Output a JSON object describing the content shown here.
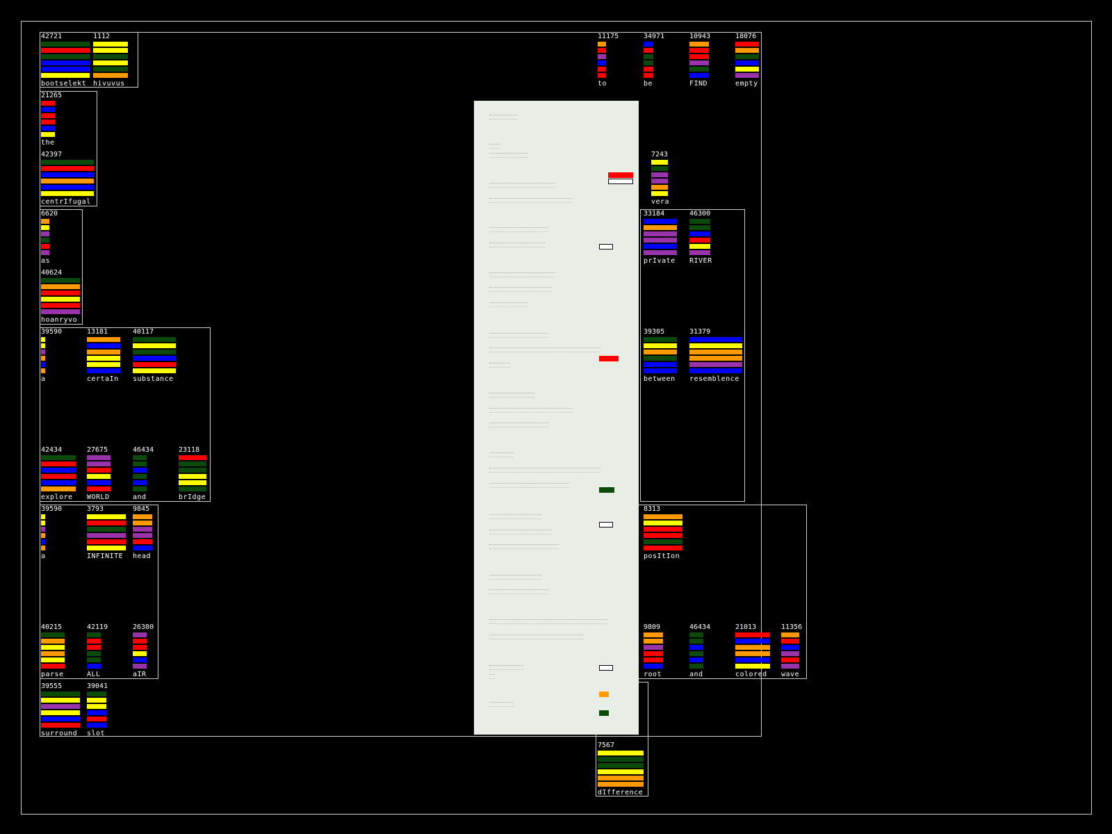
{
  "palette": {
    "green": "#0b4a0b",
    "red": "#ff0000",
    "blue": "#0000ff",
    "yellow": "#ffff00",
    "orange": "#ff9900",
    "purple": "#9933aa",
    "frame": "#cfcfcf",
    "panel": "#e8ede5"
  },
  "words": [
    {
      "count": "42721",
      "label": "bootselekt",
      "bars": [
        "green",
        "red",
        "green",
        "blue",
        "blue",
        "yellow"
      ]
    },
    {
      "count": "1112",
      "label": "hivuvus",
      "bars": [
        "yellow",
        "yellow",
        "green",
        "yellow",
        "green",
        "orange"
      ]
    },
    {
      "count": "11175",
      "label": "to",
      "bars": [
        "orange",
        "red",
        "purple",
        "blue",
        "red",
        "red"
      ]
    },
    {
      "count": "34971",
      "label": "be",
      "bars": [
        "blue",
        "red",
        "green",
        "green",
        "red",
        "red"
      ]
    },
    {
      "count": "10943",
      "label": "FIND",
      "bars": [
        "orange",
        "red",
        "red",
        "purple",
        "green",
        "blue"
      ]
    },
    {
      "count": "18076",
      "label": "empty",
      "bars": [
        "red",
        "orange",
        "green",
        "blue",
        "yellow",
        "purple"
      ]
    },
    {
      "count": "21265",
      "label": "the",
      "bars": [
        "red",
        "blue",
        "red",
        "red",
        "blue",
        "yellow"
      ]
    },
    {
      "count": "42397",
      "label": "centrIfugal",
      "bars": [
        "green",
        "red",
        "blue",
        "orange",
        "blue",
        "yellow"
      ]
    },
    {
      "count": "7243",
      "label": "vera",
      "bars": [
        "yellow",
        "green",
        "purple",
        "purple",
        "orange",
        "yellow"
      ]
    },
    {
      "count": "6620",
      "label": "as",
      "bars": [
        "orange",
        "yellow",
        "purple",
        "green",
        "red",
        "purple"
      ]
    },
    {
      "count": "33184",
      "label": "prIvate",
      "bars": [
        "blue",
        "orange",
        "purple",
        "purple",
        "blue",
        "purple"
      ]
    },
    {
      "count": "46300",
      "label": "RIVER",
      "bars": [
        "green",
        "green",
        "blue",
        "red",
        "yellow",
        "purple"
      ]
    },
    {
      "count": "40624",
      "label": "hoanryvo",
      "bars": [
        "green",
        "orange",
        "red",
        "yellow",
        "red",
        "purple"
      ]
    },
    {
      "count": "39590",
      "label": "a",
      "bars": [
        "yellow",
        "yellow",
        "purple",
        "orange",
        "blue",
        "orange"
      ]
    },
    {
      "count": "13181",
      "label": "certaIn",
      "bars": [
        "orange",
        "blue",
        "orange",
        "yellow",
        "yellow",
        "blue"
      ]
    },
    {
      "count": "40117",
      "label": "substance",
      "bars": [
        "green",
        "yellow",
        "green",
        "blue",
        "red",
        "yellow"
      ]
    },
    {
      "count": "39305",
      "label": "between",
      "bars": [
        "green",
        "yellow",
        "orange",
        "green",
        "blue",
        "blue"
      ]
    },
    {
      "count": "31379",
      "label": "resemblence",
      "bars": [
        "blue",
        "yellow",
        "orange",
        "orange",
        "purple",
        "blue"
      ]
    },
    {
      "count": "42434",
      "label": "explore",
      "bars": [
        "green",
        "red",
        "blue",
        "red",
        "blue",
        "orange"
      ]
    },
    {
      "count": "27675",
      "label": "WORLD",
      "bars": [
        "purple",
        "purple",
        "red",
        "yellow",
        "blue",
        "red"
      ]
    },
    {
      "count": "46434",
      "label": "and",
      "bars": [
        "green",
        "green",
        "blue",
        "green",
        "blue",
        "green"
      ]
    },
    {
      "count": "23118",
      "label": "brIdge",
      "bars": [
        "red",
        "green",
        "green",
        "yellow",
        "yellow",
        "green"
      ]
    },
    {
      "count": "39590",
      "label": "a",
      "bars": [
        "yellow",
        "yellow",
        "purple",
        "orange",
        "blue",
        "orange"
      ]
    },
    {
      "count": "3793",
      "label": "INFINITE",
      "bars": [
        "yellow",
        "red",
        "green",
        "purple",
        "red",
        "yellow"
      ]
    },
    {
      "count": "9845",
      "label": "head",
      "bars": [
        "orange",
        "orange",
        "purple",
        "purple",
        "red",
        "blue"
      ]
    },
    {
      "count": "8313",
      "label": "posItIon",
      "bars": [
        "orange",
        "yellow",
        "red",
        "red",
        "green",
        "red"
      ]
    },
    {
      "count": "40215",
      "label": "parse",
      "bars": [
        "green",
        "orange",
        "yellow",
        "orange",
        "yellow",
        "red"
      ]
    },
    {
      "count": "42119",
      "label": "ALL",
      "bars": [
        "green",
        "red",
        "red",
        "green",
        "green",
        "blue"
      ]
    },
    {
      "count": "26380",
      "label": "aIR",
      "bars": [
        "purple",
        "red",
        "red",
        "yellow",
        "blue",
        "purple"
      ]
    },
    {
      "count": "9809",
      "label": "root",
      "bars": [
        "orange",
        "orange",
        "purple",
        "red",
        "red",
        "blue"
      ]
    },
    {
      "count": "46434",
      "label": "and",
      "bars": [
        "green",
        "green",
        "blue",
        "green",
        "blue",
        "green"
      ]
    },
    {
      "count": "21013",
      "label": "colored",
      "bars": [
        "red",
        "blue",
        "orange",
        "orange",
        "blue",
        "yellow"
      ]
    },
    {
      "count": "11356",
      "label": "wave",
      "bars": [
        "orange",
        "red",
        "blue",
        "purple",
        "red",
        "purple"
      ]
    },
    {
      "count": "39555",
      "label": "surround",
      "bars": [
        "green",
        "yellow",
        "purple",
        "yellow",
        "blue",
        "red"
      ]
    },
    {
      "count": "39041",
      "label": "slot",
      "bars": [
        "green",
        "yellow",
        "yellow",
        "blue",
        "red",
        "blue"
      ]
    },
    {
      "count": "7567",
      "label": "dIfference",
      "bars": [
        "yellow",
        "green",
        "green",
        "yellow",
        "orange",
        "orange"
      ]
    }
  ],
  "document": {
    "markers": [
      "red-fill",
      "outline",
      "outline",
      "red-fill",
      "green-fill",
      "outline",
      "outline",
      "orange-fill",
      "green-fill"
    ]
  }
}
